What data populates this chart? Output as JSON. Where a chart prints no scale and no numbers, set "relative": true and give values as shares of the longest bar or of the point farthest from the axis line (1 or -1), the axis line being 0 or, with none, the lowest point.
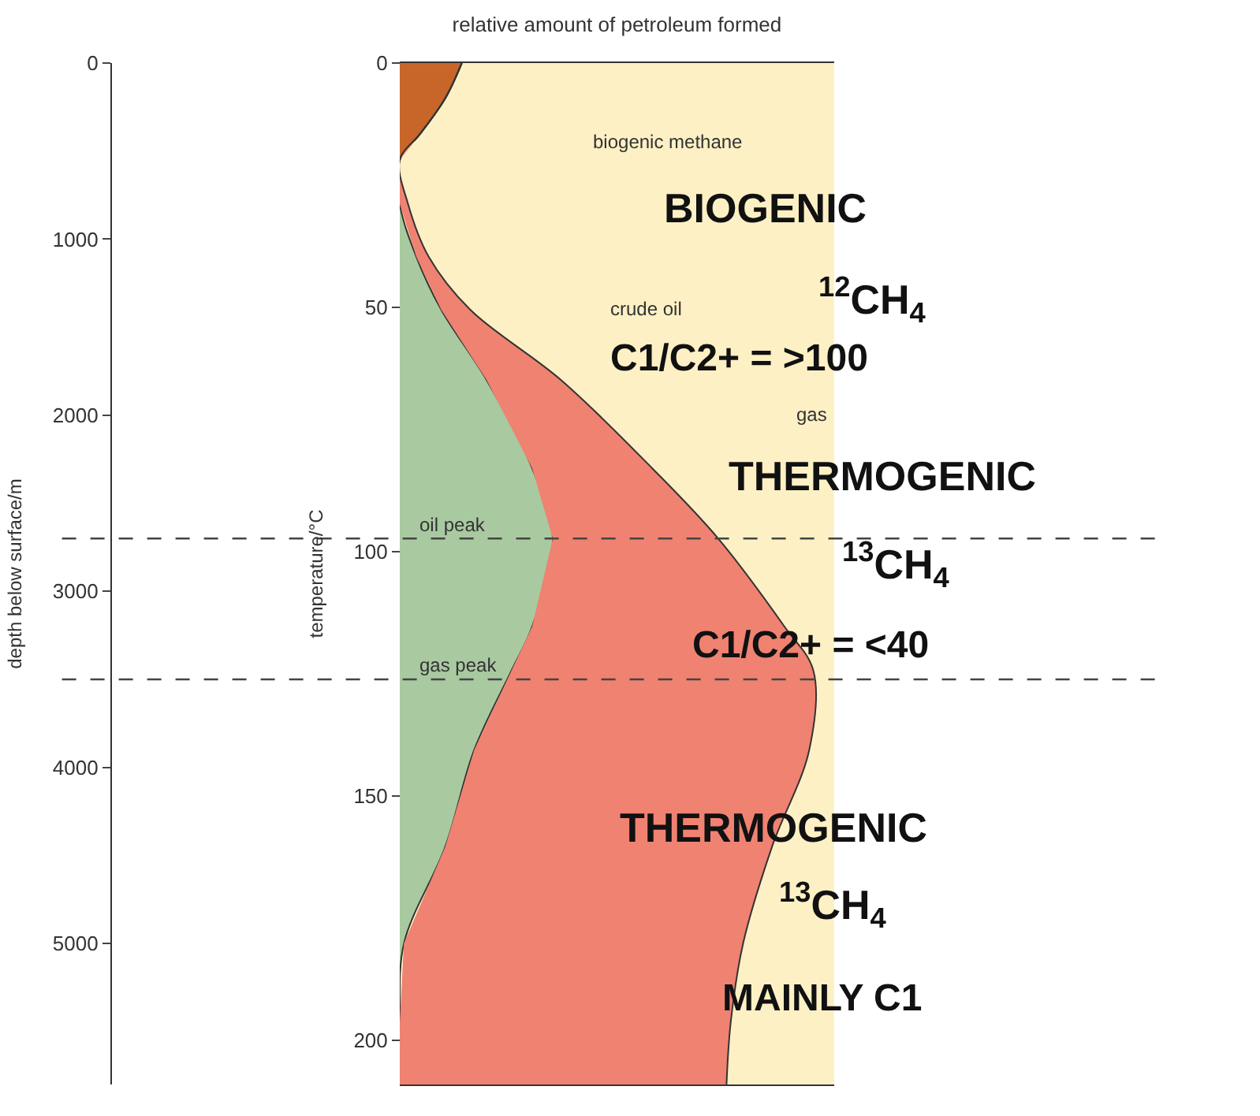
{
  "chart_data": {
    "type": "area",
    "orientation": "horizontal",
    "stacked": true,
    "relative": true,
    "legend": false,
    "xlabel": "relative amount of petroleum formed",
    "ylabel": "depth below surface/m",
    "y2label": "temperature/°C",
    "x": [
      0,
      200,
      400,
      550,
      800,
      1100,
      1400,
      1800,
      2300,
      2700,
      3200,
      3450,
      3900,
      4450,
      5000,
      5450,
      5800
    ],
    "series": [
      {
        "name": "biogenic methane",
        "color": "#c8662a",
        "values": [
          0.15,
          0.11,
          0.05,
          0,
          0,
          0,
          0,
          0,
          0,
          0,
          0,
          0,
          0,
          0,
          0,
          0,
          0
        ]
      },
      {
        "name": "crude oil",
        "color": "#a9c9a0",
        "values": [
          0,
          0,
          0,
          0,
          0,
          0.04,
          0.1,
          0.21,
          0.32,
          0.37,
          0.32,
          0.27,
          0.18,
          0.11,
          0.01,
          0,
          0
        ]
      },
      {
        "name": "gas",
        "color": "#f08272",
        "values": [
          0,
          0,
          0,
          0,
          0.02,
          0.03,
          0.07,
          0.18,
          0.29,
          0.4,
          0.61,
          0.73,
          0.81,
          0.79,
          0.82,
          0.8,
          0.79
        ]
      }
    ],
    "ylim": [
      5800,
      0
    ],
    "yticks": [
      0,
      1000,
      2000,
      3000,
      4000,
      5000
    ],
    "y2lim": [
      209,
      0
    ],
    "y2ticks": [
      0,
      50,
      100,
      150,
      200
    ],
    "ref_lines": [
      {
        "axis": "y",
        "value": 2700,
        "label": "oil peak",
        "line_style": "dashed"
      },
      {
        "axis": "y",
        "value": 3500,
        "label": "gas peak",
        "line_style": "dashed"
      }
    ],
    "annotations": [
      "BIOGENIC",
      "$^{12}$CH$_{4}$",
      "C1/C2+ = >100",
      "THERMOGENIC",
      "$^{13}$CH$_{4}$",
      "C1/C2+ = <40",
      "THERMOGENIC",
      "$^{13}$CH$_{4}$",
      "MAINLY C1"
    ]
  }
}
